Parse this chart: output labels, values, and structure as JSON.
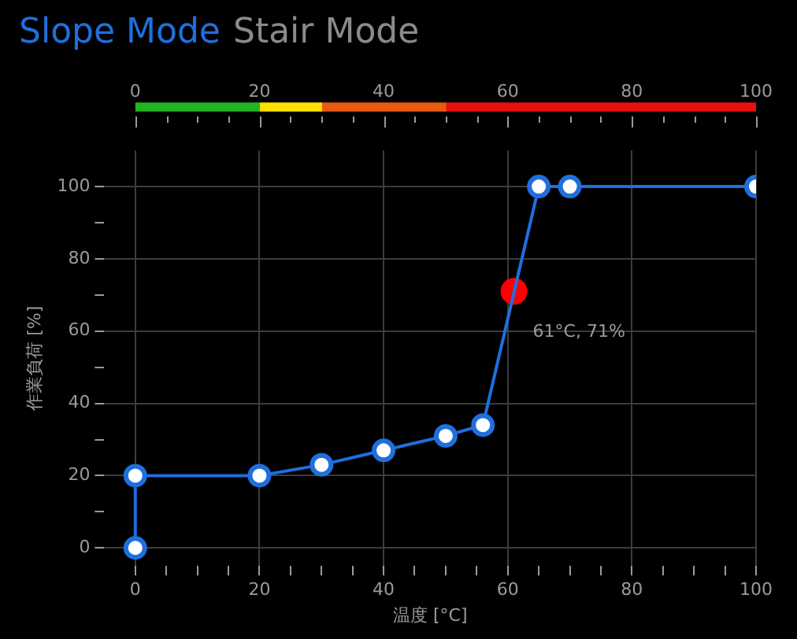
{
  "chart_data": [
    {
      "type": "bar",
      "title": "Slope Mode",
      "subtitle": "Stair Mode",
      "orientation": "horizontal",
      "stacked": true,
      "categories": [
        null
      ],
      "series": [
        {
          "color": "#22b422",
          "values": [
            20
          ]
        },
        {
          "color": "#ffe000",
          "values": [
            10
          ]
        },
        {
          "color": "#e85a10",
          "values": [
            20
          ]
        },
        {
          "color": "#e81010",
          "values": [
            50
          ]
        }
      ],
      "xlim": [
        0,
        100
      ],
      "xticks": [
        0,
        {
          "value": 5,
          "label": null
        },
        {
          "value": 10,
          "label": null
        },
        {
          "value": 15,
          "label": null
        },
        20,
        {
          "value": 25,
          "label": null
        },
        {
          "value": 30,
          "label": null
        },
        {
          "value": 35,
          "label": null
        },
        40,
        {
          "value": 45,
          "label": null
        },
        {
          "value": 50,
          "label": null
        },
        {
          "value": 55,
          "label": null
        },
        60,
        {
          "value": 65,
          "label": null
        },
        {
          "value": 70,
          "label": null
        },
        {
          "value": 75,
          "label": null
        },
        80,
        {
          "value": 85,
          "label": null
        },
        {
          "value": 90,
          "label": null
        },
        {
          "value": 95,
          "label": null
        },
        100
      ],
      "tick_labels": "x",
      "legend": false
    },
    {
      "type": "line",
      "xlabel": "温度 [°C]",
      "ylabel": "作業負荷 [%]",
      "x": [
        0,
        0,
        20,
        30,
        40,
        50,
        56,
        65,
        70,
        100
      ],
      "series": [
        {
          "color": "#1f6fde",
          "values": [
            0,
            20,
            20,
            23,
            27,
            31,
            34,
            100,
            100,
            100
          ]
        },
        {
          "type": "scatter",
          "color": "#ff0000",
          "x": [
            61
          ],
          "values": [
            71
          ]
        }
      ],
      "xlim": [
        -5,
        100
      ],
      "xticks": [
        0,
        {
          "value": 5,
          "label": null
        },
        {
          "value": 10,
          "label": null
        },
        {
          "value": 15,
          "label": null
        },
        20,
        {
          "value": 25,
          "label": null
        },
        {
          "value": 30,
          "label": null
        },
        {
          "value": 35,
          "label": null
        },
        40,
        {
          "value": 45,
          "label": null
        },
        {
          "value": 50,
          "label": null
        },
        {
          "value": 55,
          "label": null
        },
        60,
        {
          "value": 65,
          "label": null
        },
        {
          "value": 70,
          "label": null
        },
        {
          "value": 75,
          "label": null
        },
        80,
        {
          "value": 85,
          "label": null
        },
        {
          "value": 90,
          "label": null
        },
        {
          "value": 95,
          "label": null
        },
        100
      ],
      "ylim": [
        -5,
        110
      ],
      "yticks": [
        0,
        {
          "value": 10,
          "label": null
        },
        20,
        {
          "value": 30,
          "label": null
        },
        40,
        {
          "value": 50,
          "label": null
        },
        60,
        {
          "value": 70,
          "label": null
        },
        80,
        {
          "value": 90,
          "label": null
        },
        100
      ],
      "annotations": [
        {
          "text": "61°C, 71%",
          "x": 61,
          "y": 71
        }
      ],
      "grid": true,
      "marker": "circle",
      "line_style": "solid",
      "legend": false
    }
  ]
}
